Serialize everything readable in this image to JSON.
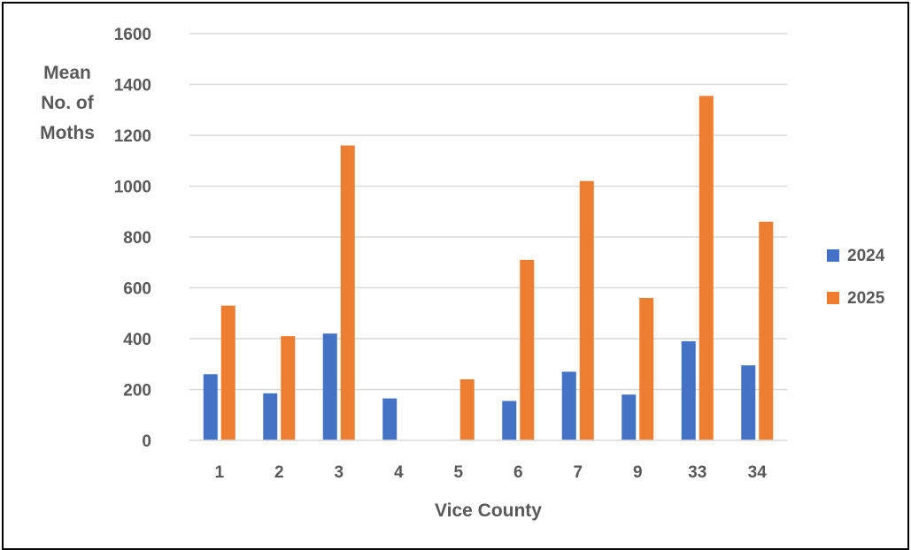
{
  "chart_data": {
    "type": "bar",
    "title": "",
    "xlabel": "Vice County",
    "ylabel_lines": [
      "Mean",
      "No. of",
      "Moths"
    ],
    "categories": [
      "1",
      "2",
      "3",
      "4",
      "5",
      "6",
      "7",
      "9",
      "33",
      "34"
    ],
    "series": [
      {
        "name": "2024",
        "color": "#4472C4",
        "values": [
          260,
          185,
          420,
          165,
          0,
          155,
          270,
          180,
          390,
          295
        ]
      },
      {
        "name": "2025",
        "color": "#ED7D31",
        "values": [
          530,
          410,
          1160,
          0,
          240,
          710,
          1020,
          560,
          1355,
          860
        ]
      }
    ],
    "ylim": [
      0,
      1600
    ],
    "yticks": [
      0,
      200,
      400,
      600,
      800,
      1000,
      1200,
      1400,
      1600
    ],
    "grid": true,
    "legend_position": "right"
  }
}
